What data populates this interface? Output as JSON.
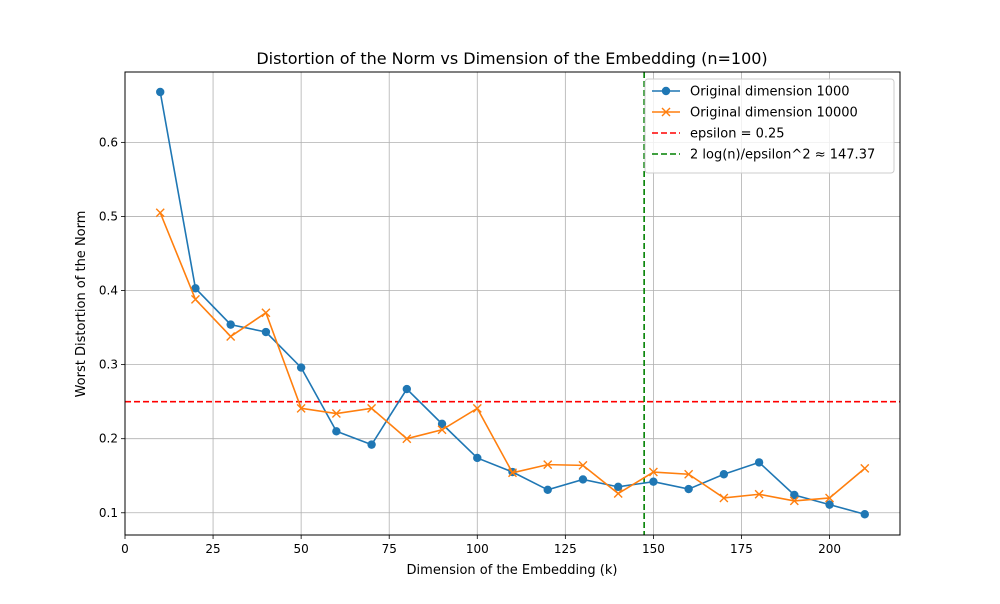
{
  "chart_data": {
    "type": "line",
    "title": "Distortion of the Norm vs Dimension of the Embedding (n=100)",
    "xlabel": "Dimension of the Embedding (k)",
    "ylabel": "Worst Distortion of the Norm",
    "xlim": [
      0,
      220
    ],
    "ylim": [
      0.07,
      0.695
    ],
    "xticks": [
      0,
      25,
      50,
      75,
      100,
      125,
      150,
      175,
      200
    ],
    "yticks": [
      0.1,
      0.2,
      0.3,
      0.4,
      0.5,
      0.6
    ],
    "grid": true,
    "legend_position": "top-right",
    "x": [
      10,
      20,
      30,
      40,
      50,
      60,
      70,
      80,
      90,
      100,
      110,
      120,
      130,
      140,
      150,
      160,
      170,
      180,
      190,
      200,
      210
    ],
    "series": [
      {
        "name": "Original dimension 1000",
        "color": "#1f77b4",
        "marker": "circle",
        "values": [
          0.668,
          0.403,
          0.354,
          0.344,
          0.296,
          0.21,
          0.192,
          0.267,
          0.22,
          0.174,
          0.155,
          0.131,
          0.145,
          0.135,
          0.142,
          0.132,
          0.152,
          0.168,
          0.124,
          0.111,
          0.098
        ]
      },
      {
        "name": "Original dimension 10000",
        "color": "#ff7f0e",
        "marker": "x",
        "values": [
          0.505,
          0.388,
          0.338,
          0.37,
          0.241,
          0.234,
          0.241,
          0.2,
          0.212,
          0.241,
          0.154,
          0.165,
          0.164,
          0.126,
          0.155,
          0.152,
          0.12,
          0.125,
          0.116,
          0.12,
          0.16
        ]
      }
    ],
    "reference_lines": [
      {
        "name": "epsilon = 0.25",
        "orientation": "horizontal",
        "value": 0.25,
        "color": "#ff0000"
      },
      {
        "name": "2 log(n)/epsilon^2 ≈ 147.37",
        "orientation": "vertical",
        "value": 147.37,
        "color": "#008000"
      }
    ]
  }
}
